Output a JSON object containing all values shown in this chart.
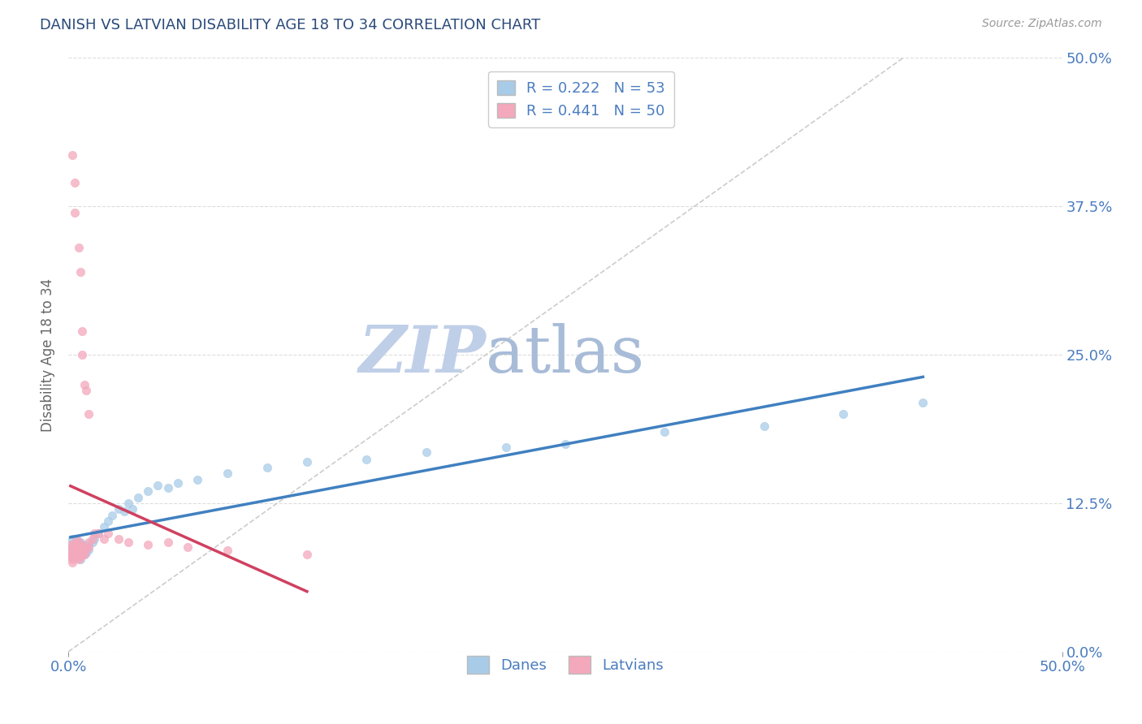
{
  "title": "DANISH VS LATVIAN DISABILITY AGE 18 TO 34 CORRELATION CHART",
  "source": "Source: ZipAtlas.com",
  "ylabel": "Disability Age 18 to 34",
  "xlim": [
    0.0,
    0.5
  ],
  "ylim": [
    0.0,
    0.5
  ],
  "ytick_labels": [
    "0.0%",
    "12.5%",
    "25.0%",
    "37.5%",
    "50.0%"
  ],
  "ytick_vals": [
    0.0,
    0.125,
    0.25,
    0.375,
    0.5
  ],
  "xtick_labels": [
    "0.0%",
    "50.0%"
  ],
  "xtick_vals": [
    0.0,
    0.5
  ],
  "danes_color": "#a8cce8",
  "latvians_color": "#f4a8bc",
  "trendline_danes_color": "#4080c0",
  "trendline_latvians_color": "#d04060",
  "diagonal_color": "#cccccc",
  "r_danes": 0.222,
  "n_danes": 53,
  "r_latvians": 0.441,
  "n_latvians": 50,
  "legend_text_color": "#4a7cc0",
  "background_color": "#ffffff",
  "grid_color": "#dddddd",
  "danes_x": [
    0.001,
    0.002,
    0.002,
    0.002,
    0.003,
    0.003,
    0.003,
    0.004,
    0.004,
    0.004,
    0.004,
    0.005,
    0.005,
    0.005,
    0.005,
    0.006,
    0.006,
    0.006,
    0.006,
    0.007,
    0.007,
    0.008,
    0.008,
    0.009,
    0.01,
    0.01,
    0.012,
    0.013,
    0.015,
    0.018,
    0.02,
    0.022,
    0.025,
    0.028,
    0.03,
    0.032,
    0.035,
    0.04,
    0.045,
    0.05,
    0.055,
    0.065,
    0.08,
    0.1,
    0.12,
    0.15,
    0.18,
    0.22,
    0.25,
    0.3,
    0.35,
    0.39,
    0.43
  ],
  "danes_y": [
    0.085,
    0.08,
    0.09,
    0.095,
    0.08,
    0.085,
    0.09,
    0.08,
    0.085,
    0.09,
    0.095,
    0.08,
    0.085,
    0.088,
    0.092,
    0.078,
    0.082,
    0.086,
    0.092,
    0.085,
    0.09,
    0.082,
    0.088,
    0.083,
    0.086,
    0.09,
    0.092,
    0.095,
    0.1,
    0.105,
    0.11,
    0.115,
    0.12,
    0.118,
    0.125,
    0.12,
    0.13,
    0.135,
    0.14,
    0.138,
    0.142,
    0.145,
    0.15,
    0.155,
    0.16,
    0.162,
    0.168,
    0.172,
    0.175,
    0.185,
    0.19,
    0.2,
    0.21
  ],
  "latvians_x": [
    0.001,
    0.001,
    0.001,
    0.002,
    0.002,
    0.002,
    0.002,
    0.002,
    0.003,
    0.003,
    0.003,
    0.003,
    0.003,
    0.004,
    0.004,
    0.004,
    0.004,
    0.005,
    0.005,
    0.005,
    0.005,
    0.005,
    0.006,
    0.006,
    0.006,
    0.006,
    0.007,
    0.007,
    0.007,
    0.007,
    0.008,
    0.008,
    0.008,
    0.009,
    0.009,
    0.01,
    0.01,
    0.01,
    0.012,
    0.013,
    0.015,
    0.018,
    0.02,
    0.025,
    0.03,
    0.04,
    0.05,
    0.06,
    0.08,
    0.12
  ],
  "latvians_y": [
    0.085,
    0.08,
    0.09,
    0.075,
    0.078,
    0.082,
    0.088,
    0.418,
    0.08,
    0.085,
    0.09,
    0.395,
    0.37,
    0.08,
    0.085,
    0.09,
    0.095,
    0.078,
    0.082,
    0.088,
    0.092,
    0.34,
    0.08,
    0.085,
    0.09,
    0.32,
    0.082,
    0.088,
    0.25,
    0.27,
    0.082,
    0.088,
    0.225,
    0.086,
    0.22,
    0.088,
    0.092,
    0.2,
    0.095,
    0.1,
    0.1,
    0.095,
    0.1,
    0.095,
    0.092,
    0.09,
    0.092,
    0.088,
    0.085,
    0.082
  ],
  "watermark_zip": "ZIP",
  "watermark_atlas": "atlas",
  "watermark_color_zip": "#c0cfe8",
  "watermark_color_atlas": "#a8bcd8"
}
